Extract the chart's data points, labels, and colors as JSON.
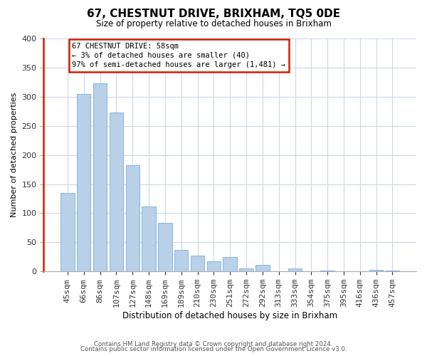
{
  "title": "67, CHESTNUT DRIVE, BRIXHAM, TQ5 0DE",
  "subtitle": "Size of property relative to detached houses in Brixham",
  "xlabel": "Distribution of detached houses by size in Brixham",
  "ylabel": "Number of detached properties",
  "bar_labels": [
    "45sqm",
    "66sqm",
    "86sqm",
    "107sqm",
    "127sqm",
    "148sqm",
    "169sqm",
    "189sqm",
    "210sqm",
    "230sqm",
    "251sqm",
    "272sqm",
    "292sqm",
    "313sqm",
    "333sqm",
    "354sqm",
    "375sqm",
    "395sqm",
    "416sqm",
    "436sqm",
    "457sqm"
  ],
  "bar_values": [
    135,
    305,
    323,
    273,
    183,
    112,
    84,
    37,
    27,
    17,
    25,
    5,
    11,
    0,
    5,
    0,
    2,
    0,
    0,
    3,
    2
  ],
  "bar_color": "#b8d0e8",
  "ylim": [
    0,
    400
  ],
  "yticks": [
    0,
    50,
    100,
    150,
    200,
    250,
    300,
    350,
    400
  ],
  "annotation_title": "67 CHESTNUT DRIVE: 58sqm",
  "annotation_line1": "← 3% of detached houses are smaller (40)",
  "annotation_line2": "97% of semi-detached houses are larger (1,481) →",
  "footer_line1": "Contains HM Land Registry data © Crown copyright and database right 2024.",
  "footer_line2": "Contains public sector information licensed under the Open Government Licence v3.0.",
  "background_color": "#ffffff",
  "grid_color": "#ccd8e8",
  "red_color": "#cc2200",
  "bar_edge_color": "#7aabe0"
}
